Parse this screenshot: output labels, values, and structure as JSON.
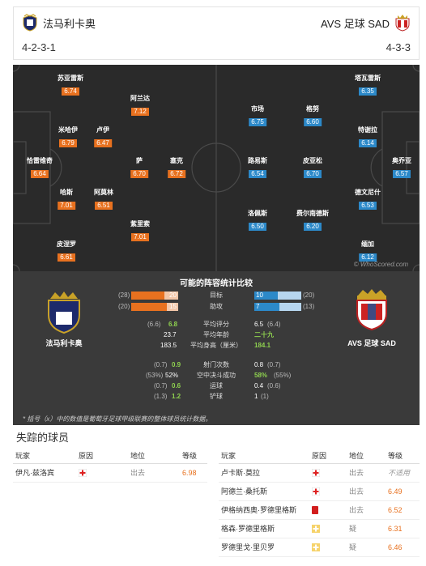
{
  "header": {
    "home": {
      "name": "法马利卡奥",
      "formation": "4-2-3-1",
      "crest_icon": "famalicao-crest-icon"
    },
    "away": {
      "name": "AVS 足球 SAD",
      "formation": "4-3-3",
      "crest_icon": "avs-crest-icon"
    }
  },
  "pitch": {
    "watermark": "© WhoScored.com",
    "home_players": [
      {
        "name": "恰雷维奇",
        "rating": "6.64"
      },
      {
        "name": "苏亚雷斯",
        "rating": "6.74"
      },
      {
        "name": "米哈伊",
        "rating": "6.79"
      },
      {
        "name": "哈斯",
        "rating": "7.01"
      },
      {
        "name": "皮涅罗",
        "rating": "6.61"
      },
      {
        "name": "卢伊",
        "rating": "6.47"
      },
      {
        "name": "阿莫林",
        "rating": "6.51"
      },
      {
        "name": "阿兰达",
        "rating": "7.12"
      },
      {
        "name": "萨",
        "rating": "6.70"
      },
      {
        "name": "紫里索",
        "rating": "7.01"
      },
      {
        "name": "塞克",
        "rating": "6.72"
      }
    ],
    "away_players": [
      {
        "name": "奥乔亚",
        "rating": "6.57"
      },
      {
        "name": "塔瓦雷斯",
        "rating": "6.35"
      },
      {
        "name": "特谢拉",
        "rating": "6.14"
      },
      {
        "name": "德文尼什",
        "rating": "6.53"
      },
      {
        "name": "缅加",
        "rating": "6.12"
      },
      {
        "name": "格努",
        "rating": "6.60"
      },
      {
        "name": "皮亚松",
        "rating": "6.70"
      },
      {
        "name": "费尔南德斯",
        "rating": "6.20"
      },
      {
        "name": "市场",
        "rating": "6.75"
      },
      {
        "name": "路易斯",
        "rating": "6.54"
      },
      {
        "name": "洛佩斯",
        "rating": "6.50"
      }
    ]
  },
  "compare": {
    "title": "可能的阵容统计比较",
    "home_name": "法马利卡奥",
    "away_name": "AVS 足球 SAD",
    "goals": {
      "label": "目标",
      "home_total": "(28)",
      "home_value": "20",
      "away_value": "10",
      "away_total": "(20)",
      "home_fill": 0.71,
      "away_fill": 0.5
    },
    "assists": {
      "label": "助攻",
      "home_total": "(20)",
      "home_value": "15",
      "away_value": "7",
      "away_total": "(13)",
      "home_fill": 0.75,
      "away_fill": 0.54
    },
    "stats": [
      {
        "home_avg": "(6.6)",
        "home": "6.8",
        "label": "平均评分",
        "away": "6.5",
        "away_avg": "(6.4)",
        "home_better": true,
        "away_better": false
      },
      {
        "home_avg": "",
        "home": "23.7",
        "label": "平均年龄",
        "away": "二十九",
        "away_avg": "",
        "home_better": false,
        "away_better": true
      },
      {
        "home_avg": "",
        "home": "183.5",
        "label": "平均身高（厘米）",
        "away": "184.1",
        "away_avg": "",
        "home_better": false,
        "away_better": true
      }
    ],
    "stats2": [
      {
        "home_avg": "(0.7)",
        "home": "0.9",
        "label": "射门次数",
        "away": "0.8",
        "away_avg": "(0.7)",
        "home_better": true,
        "away_better": false
      },
      {
        "home_avg": "(53%)",
        "home": "52%",
        "label": "空中决斗成功",
        "away": "58%",
        "away_avg": "(55%)",
        "home_better": false,
        "away_better": true
      },
      {
        "home_avg": "(0.7)",
        "home": "0.6",
        "label": "运球",
        "away": "0.4",
        "away_avg": "(0.6)",
        "home_better": true,
        "away_better": false
      },
      {
        "home_avg": "(1.3)",
        "home": "1.2",
        "label": "铲球",
        "away": "1",
        "away_avg": "(1)",
        "home_better": true,
        "away_better": false
      }
    ],
    "footnote": "* 括号（x）中的数值是葡萄牙足球甲级联赛的整体球员统计数据。"
  },
  "missing": {
    "title": "失踪的球员",
    "headers": {
      "player": "玩家",
      "reason": "原因",
      "position": "地位",
      "rating": "等级"
    },
    "home": [
      {
        "player": "伊凡·兹洛宾",
        "reason": "injury-icon",
        "status": "出去",
        "rating": "6.98"
      }
    ],
    "away": [
      {
        "player": "卢卡斯·莫拉",
        "reason": "injury-icon",
        "status": "出去",
        "rating": "不适用"
      },
      {
        "player": "阿德兰·桑托斯",
        "reason": "injury-icon",
        "status": "出去",
        "rating": "6.49"
      },
      {
        "player": "伊格纳西奥·罗德里格斯",
        "reason": "red-card-icon",
        "status": "出去",
        "rating": "6.52"
      },
      {
        "player": "格森·罗德里格斯",
        "reason": "doubtful-icon",
        "status": "疑",
        "rating": "6.31"
      },
      {
        "player": "罗德里戈·里贝罗",
        "reason": "doubtful-icon",
        "status": "疑",
        "rating": "6.46"
      }
    ]
  }
}
